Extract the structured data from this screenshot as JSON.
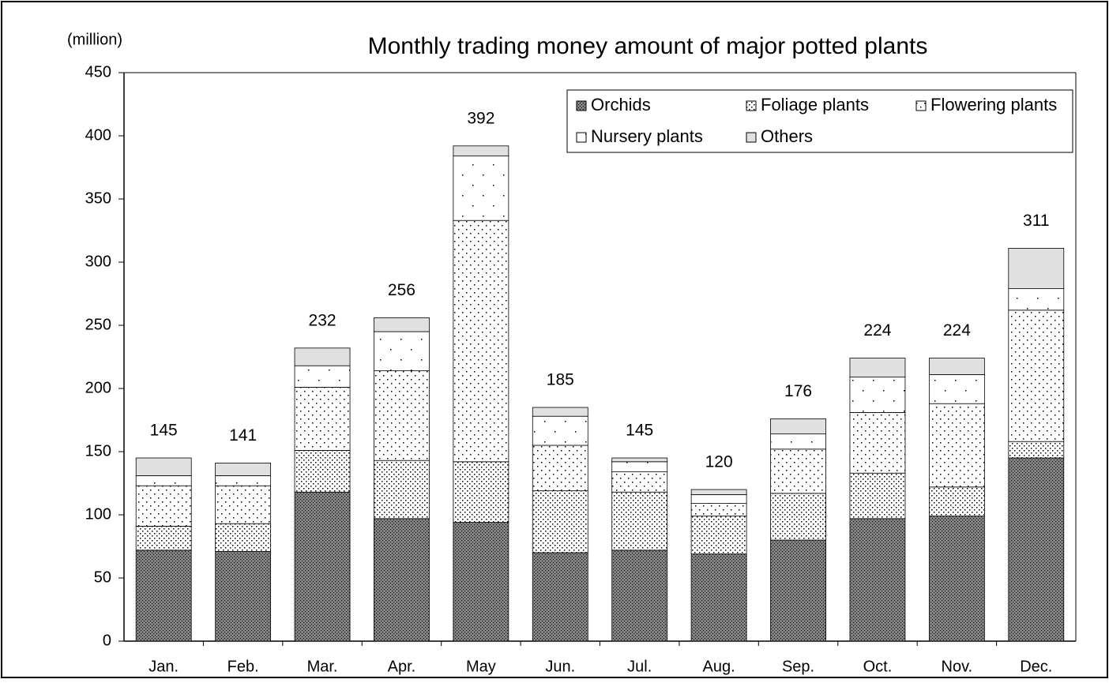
{
  "chart_data": {
    "type": "stacked-bar",
    "title": "Monthly trading money amount of major potted plants",
    "y_axis_label": "(million)",
    "categories": [
      "Jan.",
      "Feb.",
      "Mar.",
      "Apr.",
      "May",
      "Jun.",
      "Jul.",
      "Aug.",
      "Sep.",
      "Oct.",
      "Nov.",
      "Dec."
    ],
    "series": [
      {
        "name": "Orchids",
        "color": "#808080",
        "pattern": "checker",
        "values": [
          72,
          71,
          118,
          97,
          94,
          70,
          72,
          69,
          80,
          97,
          99,
          145
        ]
      },
      {
        "name": "Foliage plants",
        "color": "#ffffff",
        "pattern": "fine-dots",
        "values": [
          19,
          22,
          33,
          46,
          48,
          49,
          46,
          30,
          37,
          36,
          23,
          13
        ]
      },
      {
        "name": "Flowering plants",
        "color": "#ffffff",
        "pattern": "dots",
        "values": [
          32,
          30,
          50,
          71,
          191,
          36,
          16,
          10,
          35,
          48,
          66,
          104
        ]
      },
      {
        "name": "Nursery plants",
        "color": "#ffffff",
        "pattern": "sparse-dots",
        "values": [
          8,
          8,
          17,
          31,
          51,
          23,
          8,
          7,
          12,
          28,
          23,
          17
        ]
      },
      {
        "name": "Others",
        "color": "#e0e0e0",
        "pattern": "solid",
        "values": [
          14,
          10,
          14,
          11,
          8,
          7,
          3,
          4,
          12,
          15,
          13,
          32
        ]
      }
    ],
    "totals": [
      145,
      141,
      232,
      256,
      392,
      185,
      145,
      120,
      176,
      224,
      224,
      311
    ],
    "ylim": [
      0,
      450
    ],
    "yticks": [
      0,
      50,
      100,
      150,
      200,
      250,
      300,
      350,
      400,
      450
    ],
    "grid": false,
    "legend": "top-right"
  }
}
